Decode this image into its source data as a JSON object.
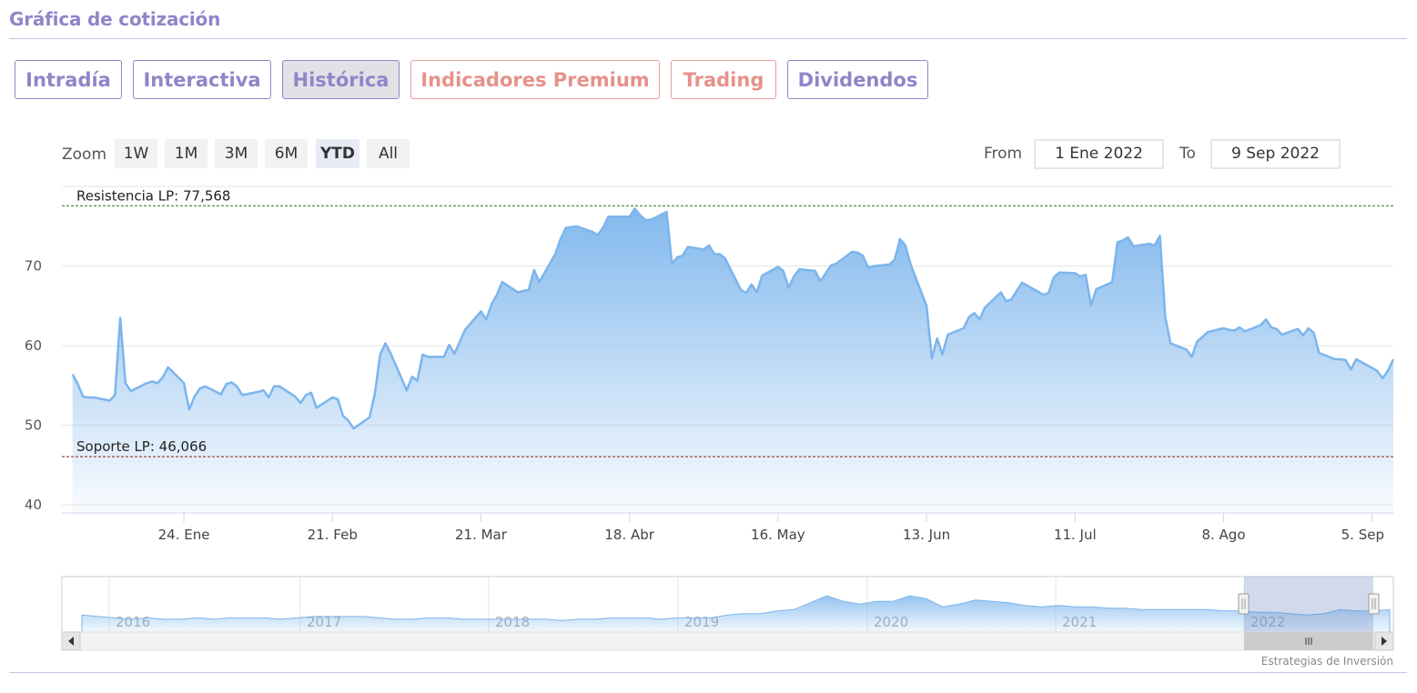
{
  "header": {
    "title": "Gráfica de cotización"
  },
  "tabs": [
    {
      "label": "Intradía",
      "style": "normal"
    },
    {
      "label": "Interactiva",
      "style": "normal"
    },
    {
      "label": "Histórica",
      "style": "active"
    },
    {
      "label": "Indicadores Premium",
      "style": "premium"
    },
    {
      "label": "Trading",
      "style": "premium"
    },
    {
      "label": "Dividendos",
      "style": "normal"
    }
  ],
  "range_selector": {
    "zoom_label": "Zoom",
    "buttons": [
      "1W",
      "1M",
      "3M",
      "6M",
      "YTD",
      "All"
    ],
    "selected": "YTD",
    "from_label": "From",
    "from_value": "1 Ene 2022",
    "to_label": "To",
    "to_value": "9 Sep 2022"
  },
  "colors": {
    "accent": "#8f86c9",
    "premium": "#e5928a",
    "series": "#7cb5ec",
    "resistance": "#1a7a1a",
    "support": "#8b1a1a"
  },
  "chart_data": {
    "type": "area",
    "ylim": [
      39,
      80
    ],
    "yticks": [
      40,
      50,
      60,
      70
    ],
    "x_ticks": [
      "24. Ene",
      "21. Feb",
      "21. Mar",
      "18. Abr",
      "16. May",
      "13. Jun",
      "11. Jul",
      "8. Ago",
      "5. Sep"
    ],
    "x_range": [
      "2022-01-01",
      "2022-09-09"
    ],
    "grid": true,
    "resistance": {
      "label": "Resistencia LP: 77,568",
      "value": 77.568
    },
    "support": {
      "label": "Soporte LP: 46,066",
      "value": 46.066
    },
    "series": [
      {
        "x": [
          "2022-01-03",
          "2022-01-04",
          "2022-01-05",
          "2022-01-06",
          "2022-01-07",
          "2022-01-10",
          "2022-01-11",
          "2022-01-12",
          "2022-01-13",
          "2022-01-14",
          "2022-01-17",
          "2022-01-18",
          "2022-01-19",
          "2022-01-20",
          "2022-01-21",
          "2022-01-24",
          "2022-01-25",
          "2022-01-26",
          "2022-01-27",
          "2022-01-28",
          "2022-01-31",
          "2022-02-01",
          "2022-02-02",
          "2022-02-03",
          "2022-02-04",
          "2022-02-07",
          "2022-02-08",
          "2022-02-09",
          "2022-02-10",
          "2022-02-11",
          "2022-02-14",
          "2022-02-15",
          "2022-02-16",
          "2022-02-17",
          "2022-02-18",
          "2022-02-21",
          "2022-02-22",
          "2022-02-23",
          "2022-02-24",
          "2022-02-25",
          "2022-02-28",
          "2022-03-01",
          "2022-03-02",
          "2022-03-03",
          "2022-03-04",
          "2022-03-07",
          "2022-03-08",
          "2022-03-09",
          "2022-03-10",
          "2022-03-11",
          "2022-03-14",
          "2022-03-15",
          "2022-03-16",
          "2022-03-17",
          "2022-03-18",
          "2022-03-21",
          "2022-03-22",
          "2022-03-23",
          "2022-03-24",
          "2022-03-25",
          "2022-03-28",
          "2022-03-29",
          "2022-03-30",
          "2022-03-31",
          "2022-04-01",
          "2022-04-04",
          "2022-04-05",
          "2022-04-06",
          "2022-04-07",
          "2022-04-08",
          "2022-04-11",
          "2022-04-12",
          "2022-04-13",
          "2022-04-14",
          "2022-04-18",
          "2022-04-19",
          "2022-04-20",
          "2022-04-21",
          "2022-04-22",
          "2022-04-25",
          "2022-04-26",
          "2022-04-27",
          "2022-04-28",
          "2022-04-29",
          "2022-05-02",
          "2022-05-03",
          "2022-05-04",
          "2022-05-05",
          "2022-05-06",
          "2022-05-09",
          "2022-05-10",
          "2022-05-11",
          "2022-05-12",
          "2022-05-13",
          "2022-05-16",
          "2022-05-17",
          "2022-05-18",
          "2022-05-19",
          "2022-05-20",
          "2022-05-23",
          "2022-05-24",
          "2022-05-25",
          "2022-05-26",
          "2022-05-27",
          "2022-05-30",
          "2022-05-31",
          "2022-06-01",
          "2022-06-02",
          "2022-06-03",
          "2022-06-06",
          "2022-06-07",
          "2022-06-08",
          "2022-06-09",
          "2022-06-10",
          "2022-06-13",
          "2022-06-14",
          "2022-06-15",
          "2022-06-16",
          "2022-06-17",
          "2022-06-20",
          "2022-06-21",
          "2022-06-22",
          "2022-06-23",
          "2022-06-24",
          "2022-06-27",
          "2022-06-28",
          "2022-06-29",
          "2022-06-30",
          "2022-07-01",
          "2022-07-04",
          "2022-07-05",
          "2022-07-06",
          "2022-07-07",
          "2022-07-08",
          "2022-07-11",
          "2022-07-12",
          "2022-07-13",
          "2022-07-14",
          "2022-07-15",
          "2022-07-18",
          "2022-07-19",
          "2022-07-20",
          "2022-07-21",
          "2022-07-22",
          "2022-07-25",
          "2022-07-26",
          "2022-07-27",
          "2022-07-28",
          "2022-07-29",
          "2022-08-01",
          "2022-08-02",
          "2022-08-03",
          "2022-08-04",
          "2022-08-05",
          "2022-08-08",
          "2022-08-09",
          "2022-08-10",
          "2022-08-11",
          "2022-08-12",
          "2022-08-15",
          "2022-08-16",
          "2022-08-17",
          "2022-08-18",
          "2022-08-19",
          "2022-08-22",
          "2022-08-23",
          "2022-08-24",
          "2022-08-25",
          "2022-08-26",
          "2022-08-29",
          "2022-08-30",
          "2022-08-31",
          "2022-09-01",
          "2022-09-02",
          "2022-09-05",
          "2022-09-06",
          "2022-09-07",
          "2022-09-08",
          "2022-09-09"
        ],
        "y": [
          56.4,
          55.2,
          53.6,
          53.5,
          53.5,
          53.1,
          53.8,
          63.5,
          55.3,
          54.3,
          55.3,
          55.5,
          55.3,
          56.0,
          57.3,
          55.3,
          52.0,
          53.6,
          54.6,
          54.9,
          53.9,
          55.2,
          55.4,
          54.9,
          53.8,
          54.2,
          54.4,
          53.5,
          54.9,
          54.9,
          53.6,
          52.8,
          53.8,
          54.1,
          52.2,
          53.5,
          53.3,
          51.2,
          50.6,
          49.6,
          51.0,
          54.0,
          58.9,
          60.3,
          59.0,
          54.4,
          56.1,
          55.6,
          58.9,
          58.6,
          58.6,
          60.1,
          59.0,
          60.5,
          62.0,
          64.3,
          63.3,
          65.2,
          66.4,
          68.0,
          66.7,
          66.9,
          67.0,
          69.5,
          68.0,
          71.5,
          73.4,
          74.8,
          74.9,
          75.0,
          74.3,
          73.9,
          74.8,
          76.2,
          76.2,
          77.2,
          76.4,
          75.8,
          75.8,
          76.8,
          70.3,
          71.1,
          71.3,
          72.4,
          72.1,
          72.6,
          71.5,
          71.5,
          71.0,
          67.0,
          66.6,
          67.7,
          66.7,
          68.8,
          69.9,
          69.4,
          67.3,
          68.7,
          69.6,
          69.4,
          68.1,
          69.1,
          70.1,
          70.3,
          71.8,
          71.7,
          71.3,
          69.8,
          70.0,
          70.2,
          70.8,
          73.4,
          72.6,
          70.2,
          65.0,
          58.4,
          60.9,
          58.9,
          61.4,
          62.2,
          63.6,
          64.1,
          63.3,
          64.8,
          66.7,
          65.6,
          65.8,
          66.9,
          67.9,
          66.8,
          66.4,
          66.6,
          68.6,
          69.2,
          69.1,
          68.7,
          68.9,
          65.1,
          67.1,
          68.0,
          73.0,
          73.2,
          73.6,
          72.5,
          72.8,
          72.6,
          73.8,
          63.6,
          60.3,
          59.5,
          58.6,
          60.5,
          61.1,
          61.7,
          62.2,
          62.0,
          61.9,
          62.3,
          61.8,
          62.6,
          63.3,
          62.3,
          62.1,
          61.4,
          62.1,
          61.3,
          62.2,
          61.6,
          59.1,
          58.3,
          58.3,
          58.2,
          57.0,
          58.3,
          57.2,
          56.8,
          55.9,
          56.9,
          58.3
        ]
      }
    ]
  },
  "navigator": {
    "years": [
      "2016",
      "2017",
      "2018",
      "2019",
      "2020",
      "2021",
      "2022"
    ],
    "values": [
      56,
      55,
      54,
      53,
      54,
      53,
      53,
      54,
      53,
      54,
      54,
      54,
      53,
      54,
      55,
      55,
      55,
      55,
      54,
      53,
      53,
      54,
      54,
      53,
      53,
      53,
      53,
      53,
      53,
      52,
      53,
      53,
      54,
      54,
      54,
      53,
      54,
      54,
      54,
      56,
      57,
      57,
      59,
      60,
      65,
      70,
      66,
      64,
      66,
      66,
      70,
      68,
      62,
      64,
      67,
      66,
      65,
      63,
      62,
      63,
      62,
      62,
      61,
      61,
      60,
      60,
      60,
      60,
      60,
      59,
      59,
      58,
      58,
      57,
      56,
      57,
      60,
      59,
      59,
      60
    ]
  },
  "credit": "Estrategias de Inversión"
}
